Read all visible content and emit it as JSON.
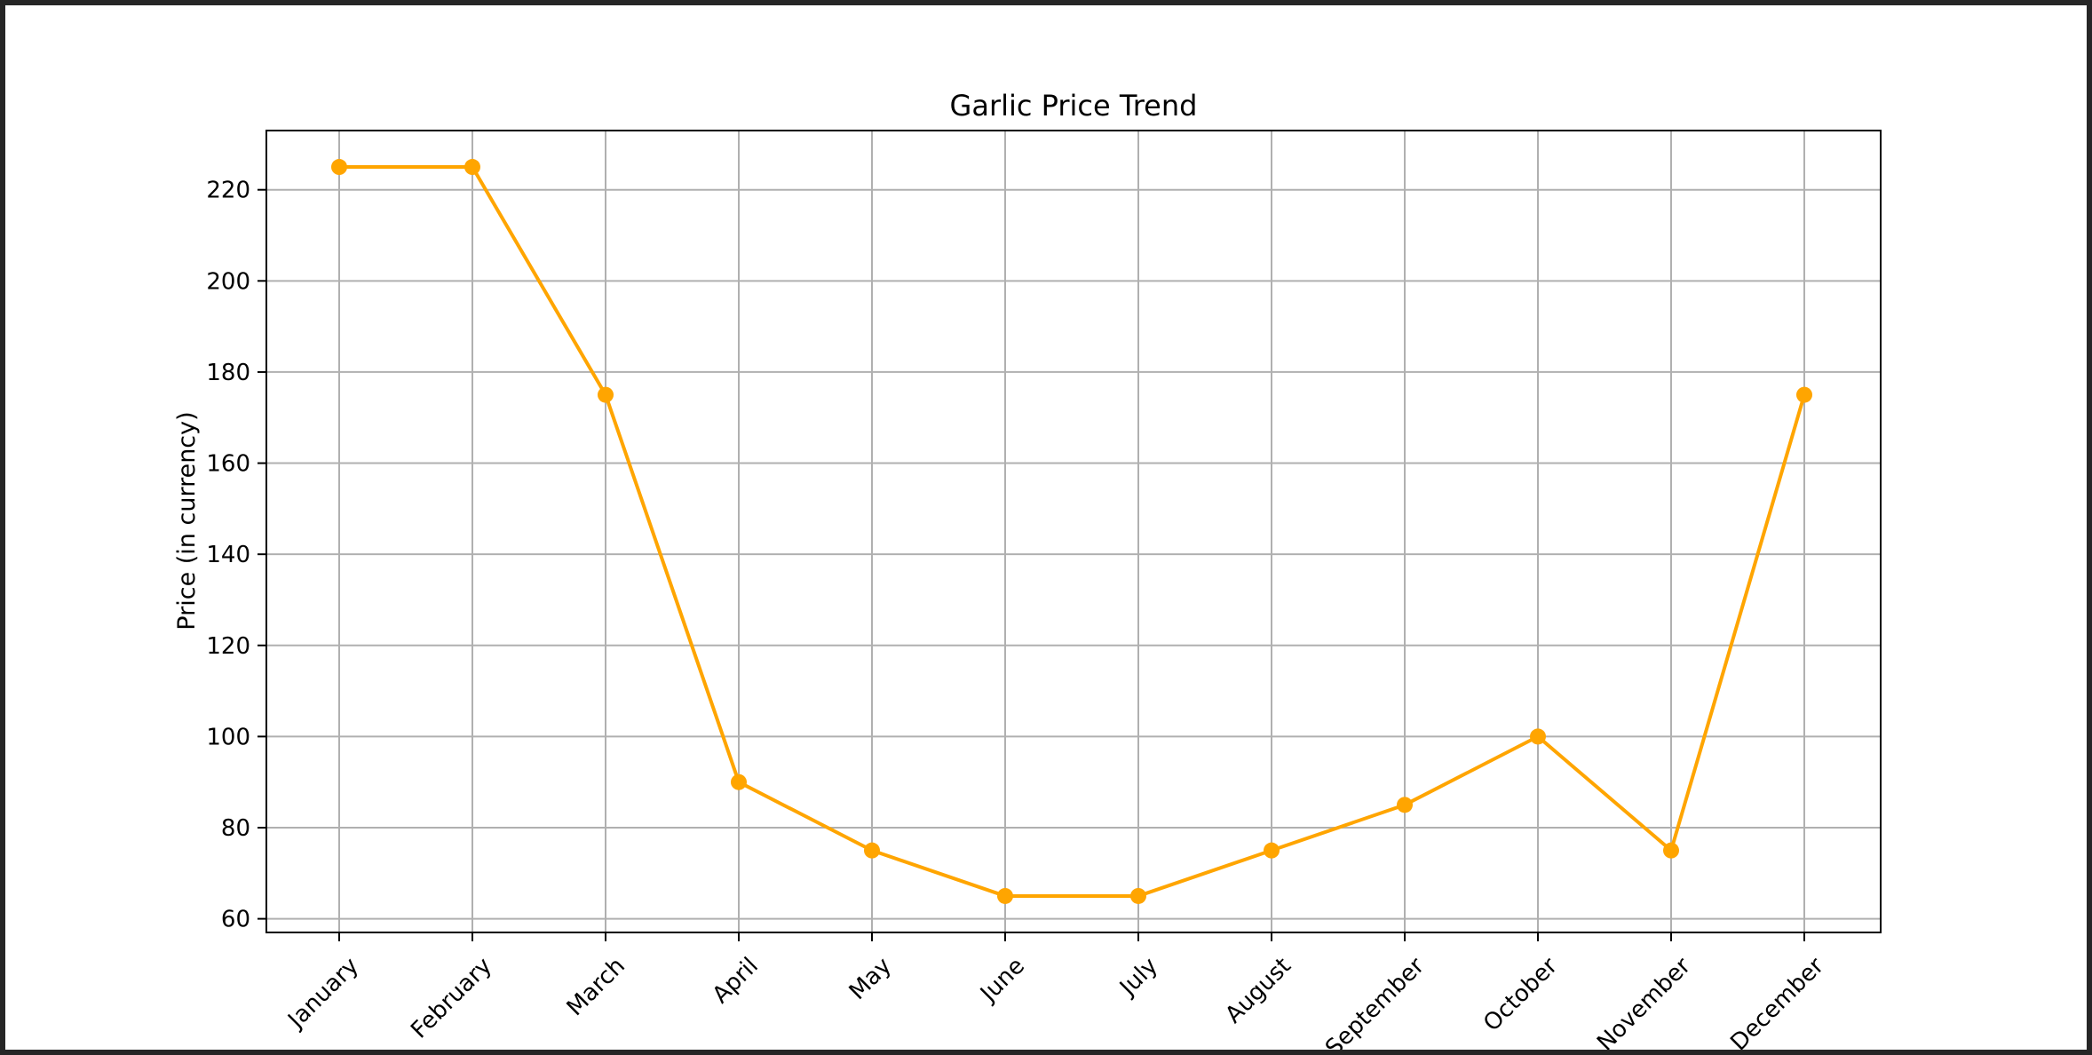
{
  "chart_data": {
    "type": "line",
    "title": "Garlic Price Trend",
    "xlabel": "",
    "ylabel": "Price (in currency)",
    "categories": [
      "January",
      "February",
      "March",
      "April",
      "May",
      "June",
      "July",
      "August",
      "September",
      "October",
      "November",
      "December"
    ],
    "series": [
      {
        "values": [
          225,
          225,
          175,
          90,
          75,
          65,
          65,
          75,
          85,
          100,
          75,
          175
        ],
        "color": "#FFA500"
      }
    ],
    "yticks": [
      60,
      80,
      100,
      120,
      140,
      160,
      180,
      200,
      220
    ],
    "ylim": [
      57,
      233
    ],
    "grid": true,
    "marker": "circle"
  }
}
